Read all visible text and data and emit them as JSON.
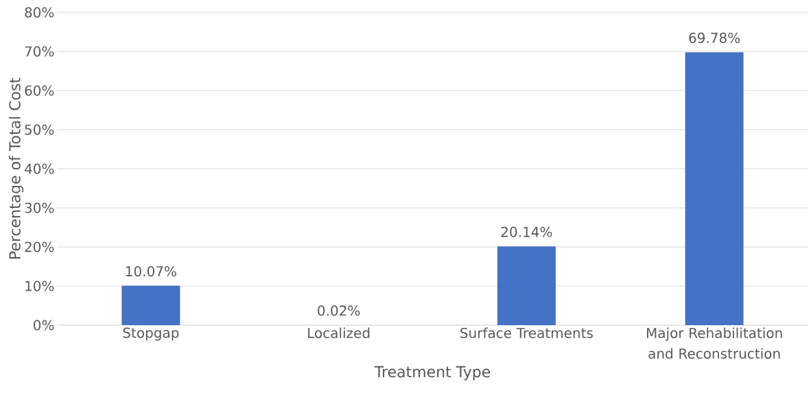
{
  "chart_data": {
    "type": "bar",
    "xlabel": "Treatment Type",
    "ylabel": "Percentage of Total Cost",
    "categories": [
      "Stopgap",
      "Localized",
      "Surface Treatments",
      "Major Rehabilitation and Reconstruction"
    ],
    "values": [
      10.07,
      0.02,
      20.14,
      69.78
    ],
    "value_labels": [
      "10.07%",
      "0.02%",
      "20.14%",
      "69.78%"
    ],
    "color": "#4472c4",
    "ylim": [
      0,
      80
    ],
    "yticks": [
      {
        "value": 0,
        "label": "0%"
      },
      {
        "value": 10,
        "label": "10%"
      },
      {
        "value": 20,
        "label": "20%"
      },
      {
        "value": 30,
        "label": "30%"
      },
      {
        "value": 40,
        "label": "40%"
      },
      {
        "value": 50,
        "label": "50%"
      },
      {
        "value": 60,
        "label": "60%"
      },
      {
        "value": 70,
        "label": "70%"
      },
      {
        "value": 80,
        "label": "80%"
      }
    ],
    "grid": "y"
  }
}
